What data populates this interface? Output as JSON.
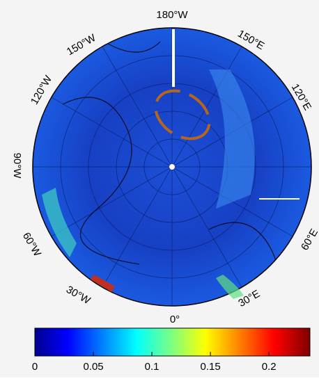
{
  "map": {
    "lon_labels": [
      "180°W",
      "150°W",
      "150°E",
      "120°W",
      "120°E",
      "90°W",
      "60°W",
      "60°E",
      "30°W",
      "30°E",
      "0°"
    ]
  },
  "colorbar": {
    "lim": [
      0,
      0.235
    ],
    "ticks": [
      0,
      0.05,
      0.1,
      0.15,
      0.2
    ]
  }
}
